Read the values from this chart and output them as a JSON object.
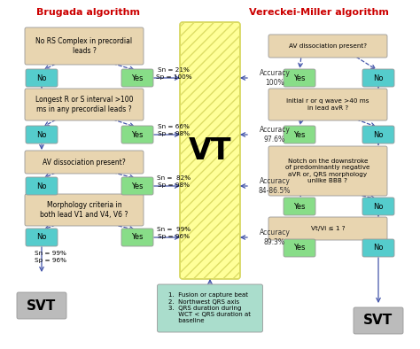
{
  "title_left": "Brugada algorithm",
  "title_right": "Vereckei-Miller algorithm",
  "title_color": "#cc0000",
  "bg_color": "#ffffff",
  "vt_box_color": "#ffff99",
  "vt_text": "VT",
  "question_box_color": "#e8d5b0",
  "yes_box_color_brugada_no": "#55cccc",
  "yes_box_color_brugada_yes": "#88dd88",
  "yes_box_color_vereckei_yes": "#88dd88",
  "no_box_color_vereckei_no": "#55cccc",
  "svt_box_color": "#bbbbbb",
  "arrow_color": "#4455aa",
  "note_box_color": "#aaddcc",
  "brugada_steps": [
    "No RS Complex in precordial\nleads ?",
    "Longest R or S interval >100\nms in any precordial leads ?",
    "AV dissociation present?",
    "Morphology criteria in\nboth lead V1 and V4, V6 ?"
  ],
  "brugada_sn_sp": [
    "Sn = 21%\nSp = 100%",
    "Sn = 66%\nSp = 98%",
    "Sn =  82%\nSp = 98%",
    "Sn =  99%\nSp = 96%"
  ],
  "vereckei_steps": [
    "AV dissociation present?",
    "Initial r or q wave >40 ms\nin lead avR ?",
    "Notch on the downstroke\nof predominantly negative\naVR or, QRS morphology\nunlike BBB ?",
    "Vt/Vi ≤ 1 ?"
  ],
  "accuracy_labels": [
    "Accuracy\n100%",
    "Accuracy\n97.6%",
    "Accuracy\n84-86.5%",
    "Accuracy\n89.3%"
  ],
  "note_lines": "1.  Fusion or capture beat\n2.  Northwest QRS axis\n3.  QRS duration during\n     WCT < QRS duration at\n     baseline",
  "final_snsp": "Sn = 99%\nSp = 96%"
}
